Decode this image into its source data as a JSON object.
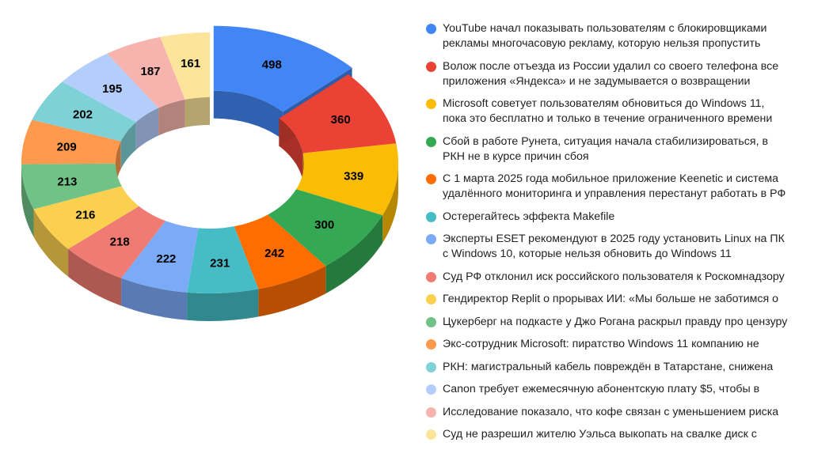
{
  "chart_data": {
    "type": "pie",
    "subtype": "3d-donut",
    "title": "",
    "start_angle": "top",
    "direction": "clockwise",
    "exploded_index": 0,
    "legend_position": "right",
    "categories": [
      "YouTube начал показывать пользователям с блокировщиками\nрекламы многочасовую рекламу, которую нельзя пропустить",
      "Волож после отъезда из России удалил со своего телефона все\nприложения «Яндекса» и не задумывается о возвращении",
      "Microsoft советует пользователям обновиться до Windows 11,\nпока это бесплатно и только в течение ограниченного времени",
      "Сбой в работе Рунета, ситуация начала стабилизироваться, в\nРКН не в курсе причин сбоя",
      "С 1 марта 2025 года мобильное приложение Keenetic и система\nудалённого мониторинга и управления перестанут работать в РФ",
      "Остерегайтесь эффекта Makefile",
      "Эксперты ESET рекомендуют в 2025 году установить Linux на ПК\nс Windows 10, которые нельзя обновить до Windows 11",
      "Суд РФ отклонил иск российского пользователя к Роскомнадзору",
      "Гендиректор Replit о прорывах ИИ: «Мы больше не заботимся о",
      "Цукерберг на подкасте у Джо Рогана раскрыл правду про цензуру",
      "Экс-сотрудник Microsoft: пиратство Windows 11 компанию не",
      "РКН: магистральный кабель повреждён в Татарстане, снижена",
      "Canon требует ежемесячную абонентскую плату $5, чтобы в",
      "Исследование показало, что кофе связан с уменьшением риска",
      "Суд не разрешил жителю Уэльса выкопать на свалке диск с"
    ],
    "values": [
      498,
      360,
      339,
      300,
      242,
      231,
      222,
      218,
      216,
      213,
      209,
      202,
      195,
      187,
      161
    ],
    "labels": [
      "498",
      "360",
      "339",
      "300",
      "242",
      "231",
      "222",
      "218",
      "216",
      "213",
      "209",
      "202",
      "195",
      "187",
      "161"
    ],
    "colors": [
      "#4285f4",
      "#ea4335",
      "#fbbc04",
      "#34a853",
      "#ff6d01",
      "#46bdc6",
      "#7baaf7",
      "#f07b72",
      "#fcd04f",
      "#71c287",
      "#ff994d",
      "#7ed1d7",
      "#b3cefb",
      "#f7b4ae",
      "#fde49b"
    ]
  },
  "legend": {
    "items": [
      {
        "text": "YouTube начал показывать пользователям с блокировщиками\nрекламы многочасовую рекламу, которую нельзя пропустить",
        "color": "#4285f4"
      },
      {
        "text": "Волож после отъезда из России удалил со своего телефона все\nприложения «Яндекса» и не задумывается о возвращении",
        "color": "#ea4335"
      },
      {
        "text": "Microsoft советует пользователям обновиться до Windows 11,\nпока это бесплатно и только в течение ограниченного времени",
        "color": "#fbbc04"
      },
      {
        "text": "Сбой в работе Рунета, ситуация начала стабилизироваться, в\nРКН не в курсе причин сбоя",
        "color": "#34a853"
      },
      {
        "text": "С 1 марта 2025 года мобильное приложение Keenetic и система\nудалённого мониторинга и управления перестанут работать в РФ",
        "color": "#ff6d01"
      },
      {
        "text": "Остерегайтесь эффекта Makefile",
        "color": "#46bdc6"
      },
      {
        "text": "Эксперты ESET рекомендуют в 2025 году установить Linux на ПК\nс Windows 10, которые нельзя обновить до Windows 11",
        "color": "#7baaf7"
      },
      {
        "text": "Суд РФ отклонил иск российского пользователя к Роскомнадзору",
        "color": "#f07b72"
      },
      {
        "text": "Гендиректор Replit о прорывах ИИ: «Мы больше не заботимся о",
        "color": "#fcd04f"
      },
      {
        "text": "Цукерберг на подкасте у Джо Рогана раскрыл правду про цензуру",
        "color": "#71c287"
      },
      {
        "text": "Экс-сотрудник Microsoft: пиратство Windows 11 компанию не",
        "color": "#ff994d"
      },
      {
        "text": "РКН: магистральный кабель повреждён в Татарстане, снижена",
        "color": "#7ed1d7"
      },
      {
        "text": "Canon требует ежемесячную абонентскую плату $5, чтобы в",
        "color": "#b3cefb"
      },
      {
        "text": "Исследование показало, что кофе связан с уменьшением риска",
        "color": "#f7b4ae"
      },
      {
        "text": "Суд не разрешил жителю Уэльса выкопать на свалке диск с",
        "color": "#fde49b"
      }
    ]
  }
}
